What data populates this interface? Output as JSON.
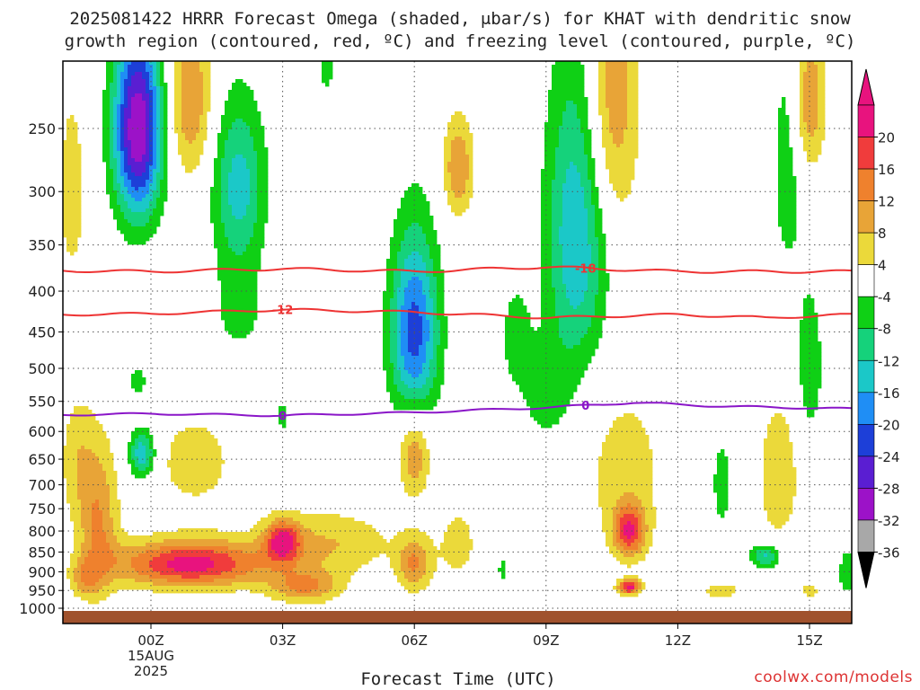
{
  "title_line1": "2025081422 HRRR Forecast Omega (shaded, μbar/s) for KHAT with dendritic snow",
  "title_line2": "growth region (contoured, red, ºC) and freezing level (contoured, purple, ºC)",
  "xlabel": "Forecast Time (UTC)",
  "credit": "coolwx.com/models",
  "chart_data": {
    "type": "heatmap",
    "title": "2025081422 HRRR Forecast Omega (shaded, μbar/s) for KHAT with dendritic snow growth region (contoured, red, ºC) and freezing level (contoured, purple, ºC)",
    "xlabel": "Forecast Time (UTC)",
    "ylabel": "",
    "x_range_hours_from_00Z": [
      -2.0,
      16.0
    ],
    "y_range_hPa": [
      1000,
      200
    ],
    "y_scale": "log",
    "grid": true,
    "x_ticks": [
      {
        "hour": 0,
        "label": "00Z",
        "date_label": "15AUG",
        "year_label": "2025"
      },
      {
        "hour": 3,
        "label": "03Z"
      },
      {
        "hour": 6,
        "label": "06Z"
      },
      {
        "hour": 9,
        "label": "09Z"
      },
      {
        "hour": 12,
        "label": "12Z"
      },
      {
        "hour": 15,
        "label": "15Z"
      }
    ],
    "y_ticks": [
      250,
      300,
      350,
      400,
      450,
      500,
      550,
      600,
      650,
      700,
      750,
      800,
      850,
      900,
      950,
      1000
    ],
    "colorbar": {
      "units": "μbar/s",
      "tick_labels": [
        20,
        16,
        12,
        8,
        4,
        -4,
        -8,
        -12,
        -16,
        -20,
        -24,
        -28,
        -32,
        -36
      ],
      "bins": [
        {
          "lo": 20,
          "hi": 24,
          "color": "#e8137e"
        },
        {
          "lo": 16,
          "hi": 20,
          "color": "#f03c3c"
        },
        {
          "lo": 12,
          "hi": 16,
          "color": "#ef812d"
        },
        {
          "lo": 8,
          "hi": 12,
          "color": "#e8a437"
        },
        {
          "lo": 4,
          "hi": 8,
          "color": "#ebd93a"
        },
        {
          "lo": -4,
          "hi": 4,
          "color": "#ffffff"
        },
        {
          "lo": -8,
          "hi": -4,
          "color": "#0fd015"
        },
        {
          "lo": -12,
          "hi": -8,
          "color": "#15d27b"
        },
        {
          "lo": -16,
          "hi": -12,
          "color": "#1bc8c8"
        },
        {
          "lo": -20,
          "hi": -16,
          "color": "#1f8ef5"
        },
        {
          "lo": -24,
          "hi": -20,
          "color": "#1d3fd8"
        },
        {
          "lo": -28,
          "hi": -24,
          "color": "#5a1ed2"
        },
        {
          "lo": -32,
          "hi": -28,
          "color": "#9c12c8"
        },
        {
          "lo": -36,
          "hi": -32,
          "color": "#a8a8a8"
        }
      ],
      "triangle_top_color": "#e8137e",
      "triangle_bottom_color": "#000000"
    },
    "omega_features": [
      {
        "hour": -1.8,
        "p": 300,
        "value": 6,
        "dh": 0.35,
        "dp": 95
      },
      {
        "hour": -1.7,
        "p": 650,
        "value": 6,
        "dh": 0.4,
        "dp": 120
      },
      {
        "hour": -1.2,
        "p": 780,
        "value": 12,
        "dh": 0.45,
        "dp": 170
      },
      {
        "hour": -1.5,
        "p": 920,
        "value": 8,
        "dh": 0.35,
        "dp": 50
      },
      {
        "hour": -0.3,
        "p": 250,
        "value": -32,
        "dh": 0.55,
        "dp": 70
      },
      {
        "hour": -0.3,
        "p": 520,
        "value": -5,
        "dh": 0.35,
        "dp": 40
      },
      {
        "hour": -0.2,
        "p": 640,
        "value": -16,
        "dh": 0.3,
        "dp": 45
      },
      {
        "hour": 0.9,
        "p": 230,
        "value": 12,
        "dh": 0.5,
        "dp": 55
      },
      {
        "hour": 0.9,
        "p": 880,
        "value": 22,
        "dh": 1.7,
        "dp": 60
      },
      {
        "hour": 1.0,
        "p": 655,
        "value": 6,
        "dh": 1.0,
        "dp": 100
      },
      {
        "hour": 2.0,
        "p": 295,
        "value": -14,
        "dh": 0.6,
        "dp": 70
      },
      {
        "hour": 2.0,
        "p": 420,
        "value": -6,
        "dh": 0.6,
        "dp": 60
      },
      {
        "hour": 3.0,
        "p": 825,
        "value": 18,
        "dh": 0.4,
        "dp": 50
      },
      {
        "hour": 3.0,
        "p": 575,
        "value": -6,
        "dh": 0.15,
        "dp": 30
      },
      {
        "hour": 3.5,
        "p": 940,
        "value": 12,
        "dh": 0.8,
        "dp": 45
      },
      {
        "hour": 4.0,
        "p": 830,
        "value": 8,
        "dh": 1.5,
        "dp": 80
      },
      {
        "hour": 4.0,
        "p": 190,
        "value": -6,
        "dh": 0.25,
        "dp": 50
      },
      {
        "hour": 5.2,
        "p": 910,
        "value": -6,
        "dh": 0.12,
        "dp": 15
      },
      {
        "hour": 6.0,
        "p": 450,
        "value": -22,
        "dh": 0.55,
        "dp": 120
      },
      {
        "hour": 6.0,
        "p": 640,
        "value": 12,
        "dh": 0.35,
        "dp": 80
      },
      {
        "hour": 6.0,
        "p": 880,
        "value": 12,
        "dh": 0.4,
        "dp": 70
      },
      {
        "hour": 7.0,
        "p": 280,
        "value": 12,
        "dh": 0.35,
        "dp": 40
      },
      {
        "hour": 7.0,
        "p": 830,
        "value": 6,
        "dh": 0.45,
        "dp": 90
      },
      {
        "hour": 8.0,
        "p": 895,
        "value": -6,
        "dh": 0.1,
        "dp": 40
      },
      {
        "hour": 8.3,
        "p": 455,
        "value": -6,
        "dh": 0.35,
        "dp": 70
      },
      {
        "hour": 9.0,
        "p": 540,
        "value": -6,
        "dh": 0.6,
        "dp": 80
      },
      {
        "hour": 9.7,
        "p": 340,
        "value": -16,
        "dh": 0.7,
        "dp": 150
      },
      {
        "hour": 10.9,
        "p": 800,
        "value": 18,
        "dh": 0.35,
        "dp": 60
      },
      {
        "hour": 10.9,
        "p": 940,
        "value": 22,
        "dh": 0.25,
        "dp": 20
      },
      {
        "hour": 10.5,
        "p": 230,
        "value": 12,
        "dh": 0.6,
        "dp": 100
      },
      {
        "hour": 10.8,
        "p": 680,
        "value": 6,
        "dh": 1.0,
        "dp": 180
      },
      {
        "hour": 13.0,
        "p": 950,
        "value": 8,
        "dh": 0.4,
        "dp": 20
      },
      {
        "hour": 14.0,
        "p": 860,
        "value": -14,
        "dh": 0.35,
        "dp": 30
      },
      {
        "hour": 14.3,
        "p": 680,
        "value": 6,
        "dh": 0.6,
        "dp": 180
      },
      {
        "hour": 14.5,
        "p": 280,
        "value": -6,
        "dh": 0.4,
        "dp": 120
      },
      {
        "hour": 15.0,
        "p": 230,
        "value": 12,
        "dh": 0.35,
        "dp": 50
      },
      {
        "hour": 15.0,
        "p": 500,
        "value": -8,
        "dh": 0.3,
        "dp": 110
      },
      {
        "hour": 15.0,
        "p": 950,
        "value": 6,
        "dh": 0.25,
        "dp": 20
      },
      {
        "hour": 15.9,
        "p": 900,
        "value": -8,
        "dh": 0.25,
        "dp": 60
      },
      {
        "hour": 13.0,
        "p": 700,
        "value": -6,
        "dh": 0.25,
        "dp": 110
      }
    ],
    "contours": [
      {
        "name": "-18",
        "color": "#ee3333",
        "label_hour": 9.9,
        "points": [
          [
            -2,
            377
          ],
          [
            0,
            378
          ],
          [
            3,
            375
          ],
          [
            6,
            378
          ],
          [
            9,
            373
          ],
          [
            12,
            378
          ],
          [
            16,
            378
          ]
        ]
      },
      {
        "name": "-12",
        "color": "#ee3333",
        "label_hour": 3.0,
        "points": [
          [
            -2,
            428
          ],
          [
            0,
            427
          ],
          [
            3,
            422
          ],
          [
            6,
            425
          ],
          [
            9,
            432
          ],
          [
            12,
            428
          ],
          [
            14,
            432
          ],
          [
            16,
            428
          ]
        ]
      },
      {
        "name": "0",
        "color": "#8a16c8",
        "label_hour": 3.0,
        "label_hour_2": 9.9,
        "points": [
          [
            -2,
            572
          ],
          [
            0,
            570
          ],
          [
            3,
            573
          ],
          [
            6,
            568
          ],
          [
            9,
            560
          ],
          [
            11,
            552
          ],
          [
            13,
            558
          ],
          [
            16,
            562
          ]
        ]
      }
    ]
  }
}
